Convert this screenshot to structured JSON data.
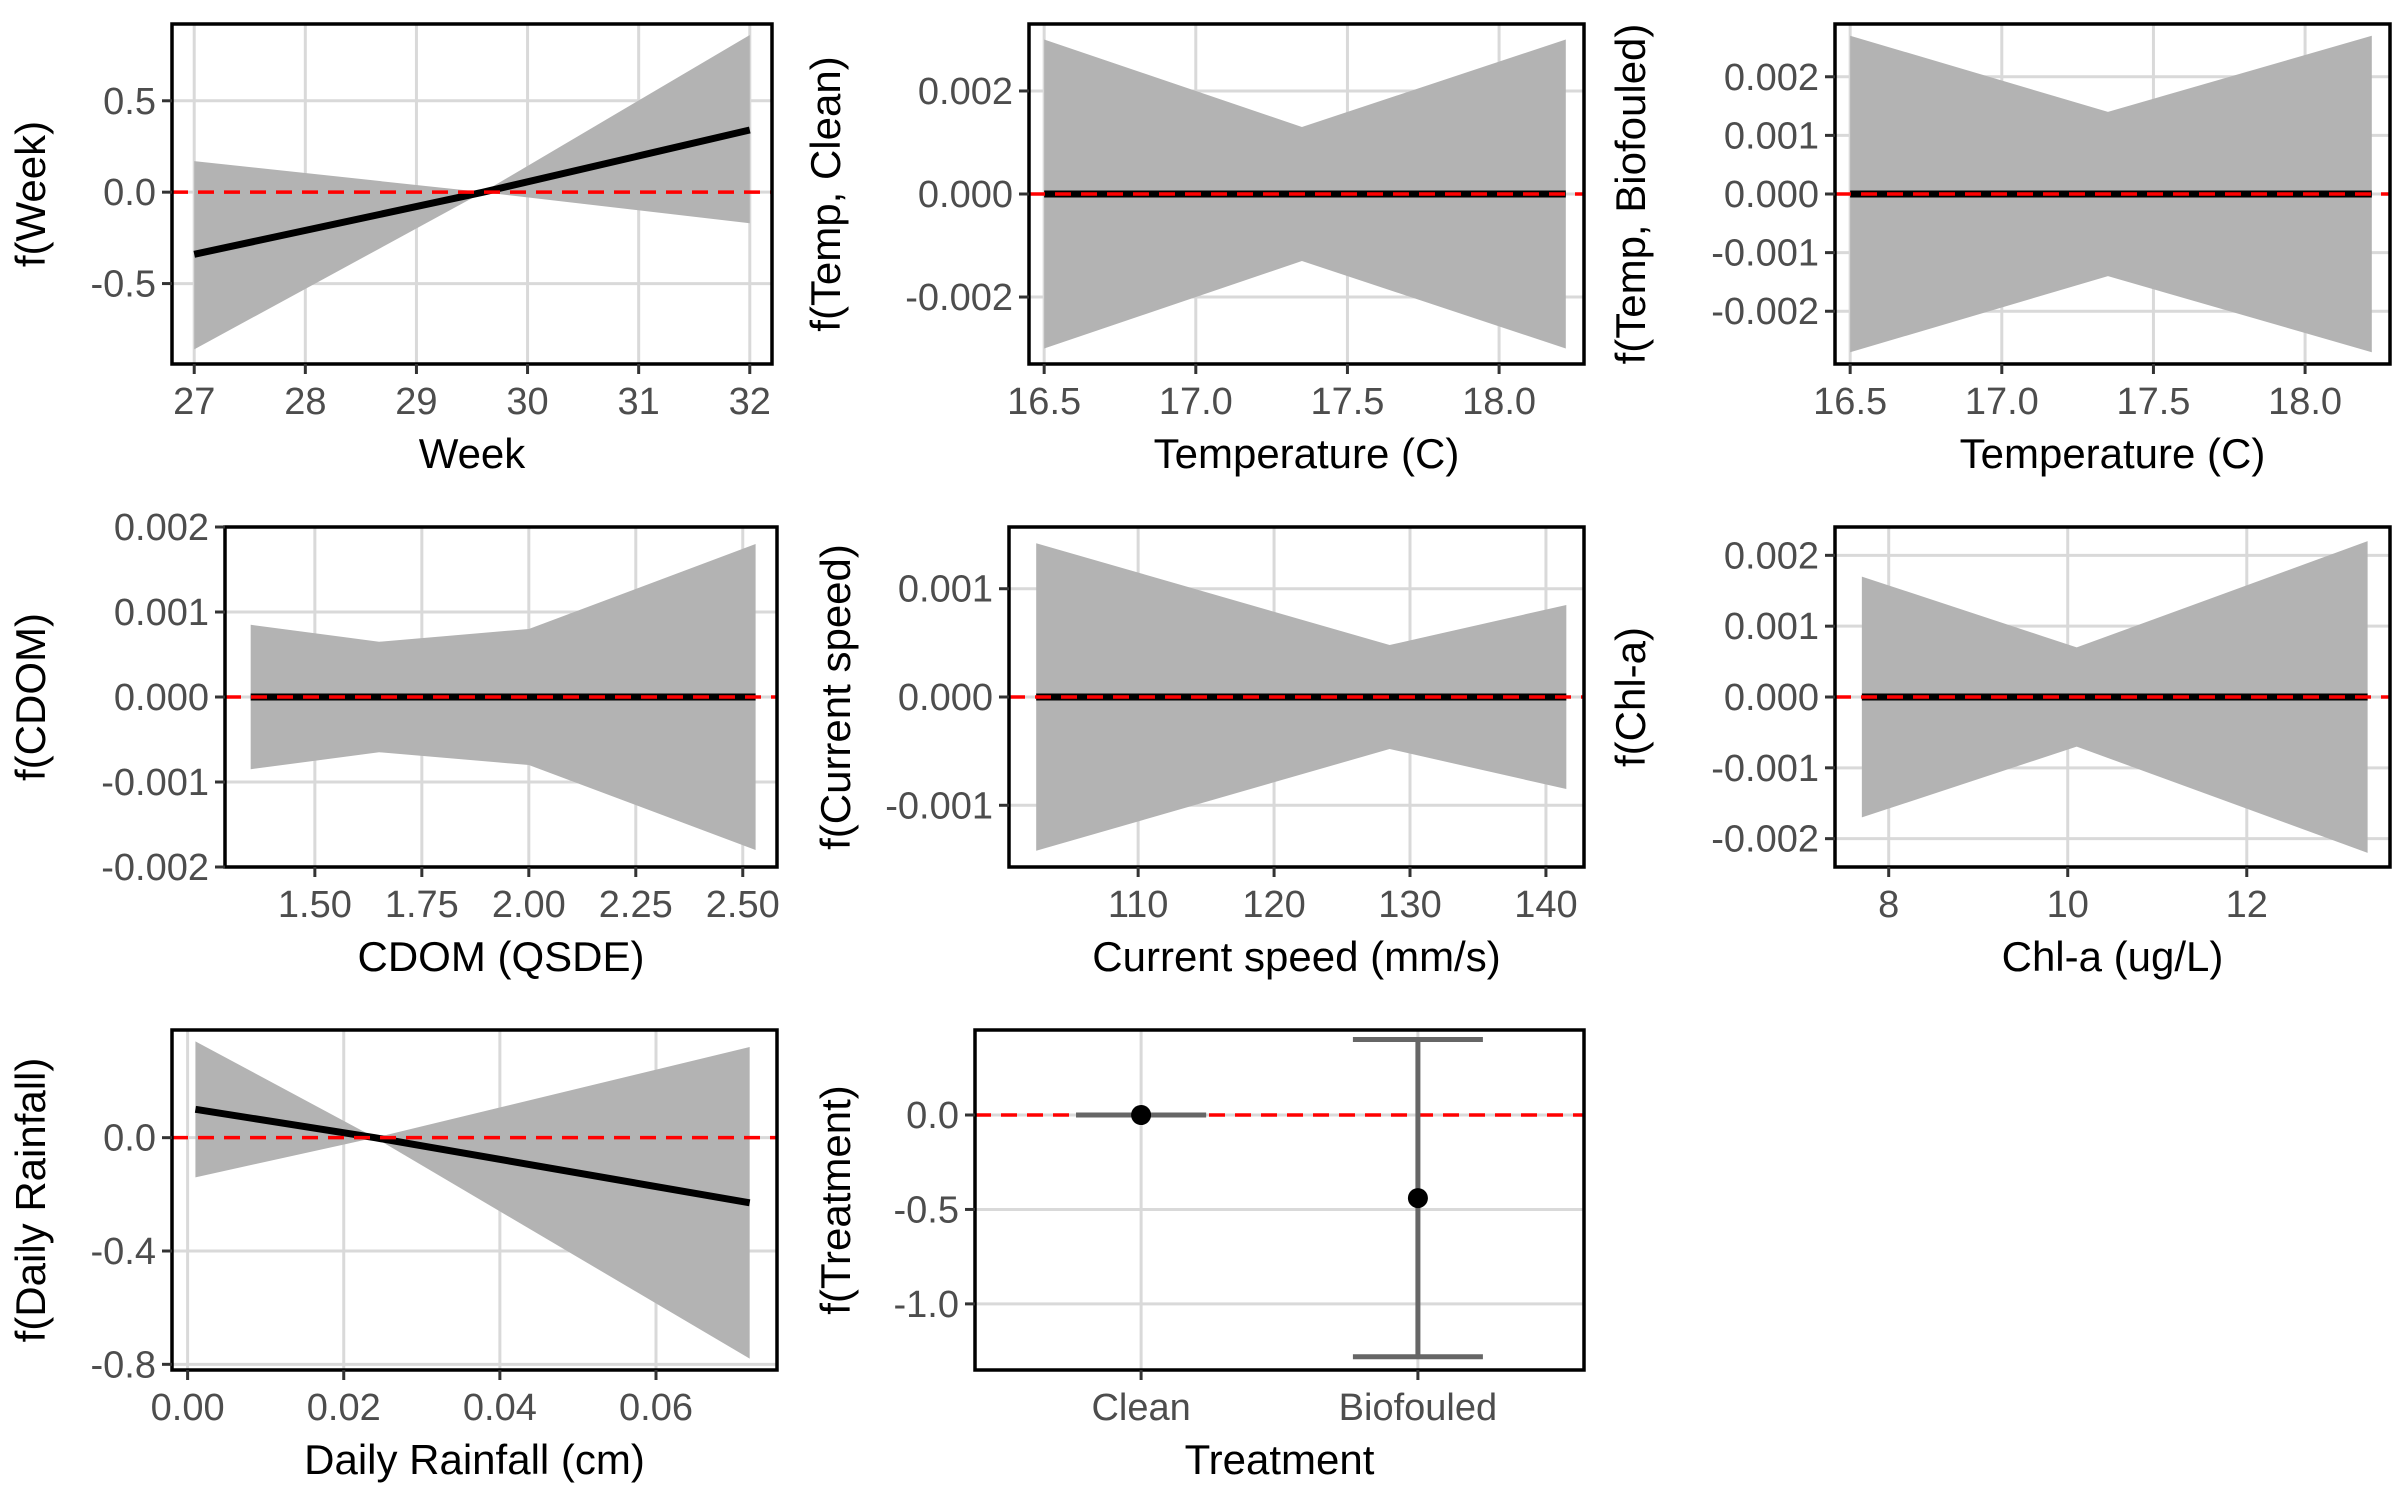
{
  "colors": {
    "line": "#000000",
    "band": "#b3b3b3",
    "zero_line": "#ff0000",
    "grid": "#d9d9d9",
    "errorbar": "#666666",
    "panel_border": "#000000"
  },
  "chart_data": [
    {
      "type": "line",
      "name": "week-panel",
      "xlabel": "Week",
      "ylabel": "f(Week)",
      "xlim": [
        26.8,
        32.2
      ],
      "ylim": [
        -0.94,
        0.92
      ],
      "xticks": [
        27,
        28,
        29,
        30,
        31,
        32
      ],
      "xtick_labels": [
        "27",
        "28",
        "29",
        "30",
        "31",
        "32"
      ],
      "yticks": [
        -0.5,
        0.0,
        0.5
      ],
      "ytick_labels": [
        "-0.5",
        "0.0",
        "0.5"
      ],
      "x": [
        27,
        29.6,
        32
      ],
      "y": [
        -0.34,
        0.0,
        0.34
      ],
      "lower": [
        -0.86,
        0.0,
        -0.17
      ],
      "upper": [
        0.17,
        0.0,
        0.86
      ],
      "zero_line": 0
    },
    {
      "type": "line",
      "name": "temp-clean-panel",
      "xlabel": "Temperature (C)",
      "ylabel": "f(Temp, Clean)",
      "xlim": [
        16.45,
        18.28
      ],
      "ylim": [
        -0.0033,
        0.0033
      ],
      "xticks": [
        16.5,
        17.0,
        17.5,
        18.0
      ],
      "xtick_labels": [
        "16.5",
        "17.0",
        "17.5",
        "18.0"
      ],
      "yticks": [
        -0.002,
        0.0,
        0.002
      ],
      "ytick_labels": [
        "-0.002",
        "0.000",
        "0.002"
      ],
      "x": [
        16.5,
        17.35,
        18.22
      ],
      "y": [
        0,
        0,
        0
      ],
      "lower": [
        -0.003,
        -0.0013,
        -0.003
      ],
      "upper": [
        0.003,
        0.0013,
        0.003
      ],
      "zero_line": 0
    },
    {
      "type": "line",
      "name": "temp-biofouled-panel",
      "xlabel": "Temperature (C)",
      "ylabel": "f(Temp, Biofouled)",
      "xlim": [
        16.45,
        18.28
      ],
      "ylim": [
        -0.0029,
        0.0029
      ],
      "xticks": [
        16.5,
        17.0,
        17.5,
        18.0
      ],
      "xtick_labels": [
        "16.5",
        "17.0",
        "17.5",
        "18.0"
      ],
      "yticks": [
        -0.002,
        -0.001,
        0.0,
        0.001,
        0.002
      ],
      "ytick_labels": [
        "-0.002",
        "-0.001",
        "0.000",
        "0.001",
        "0.002"
      ],
      "x": [
        16.5,
        17.35,
        18.22
      ],
      "y": [
        0,
        0,
        0
      ],
      "lower": [
        -0.0027,
        -0.0014,
        -0.0027
      ],
      "upper": [
        0.0027,
        0.0014,
        0.0027
      ],
      "zero_line": 0
    },
    {
      "type": "line",
      "name": "cdom-panel",
      "xlabel": "CDOM (QSDE)",
      "ylabel": "f(CDOM)",
      "xlim": [
        1.29,
        2.58
      ],
      "ylim": [
        -0.002,
        0.002
      ],
      "xticks": [
        1.5,
        1.75,
        2.0,
        2.25,
        2.5
      ],
      "xtick_labels": [
        "1.50",
        "1.75",
        "2.00",
        "2.25",
        "2.50"
      ],
      "yticks": [
        -0.002,
        -0.001,
        0.0,
        0.001,
        0.002
      ],
      "ytick_labels": [
        "-0.002",
        "-0.001",
        "0.000",
        "0.001",
        "0.002"
      ],
      "x": [
        1.35,
        1.65,
        2.0,
        2.53
      ],
      "y": [
        0,
        0,
        0,
        0
      ],
      "lower": [
        -0.00085,
        -0.00065,
        -0.0008,
        -0.0018
      ],
      "upper": [
        0.00085,
        0.00065,
        0.0008,
        0.0018
      ],
      "zero_line": 0
    },
    {
      "type": "line",
      "name": "current-speed-panel",
      "xlabel": "Current speed (mm/s)",
      "ylabel": "f(Current speed)",
      "xlim": [
        100.5,
        142.8
      ],
      "ylim": [
        -0.00157,
        0.00157
      ],
      "xticks": [
        110,
        120,
        130,
        140
      ],
      "xtick_labels": [
        "110",
        "120",
        "130",
        "140"
      ],
      "yticks": [
        -0.001,
        0.0,
        0.001
      ],
      "ytick_labels": [
        "-0.001",
        "0.000",
        "0.001"
      ],
      "x": [
        102.5,
        128.5,
        141.5
      ],
      "y": [
        0,
        0,
        0
      ],
      "lower": [
        -0.00142,
        -0.00048,
        -0.00085
      ],
      "upper": [
        0.00142,
        0.00048,
        0.00085
      ],
      "zero_line": 0
    },
    {
      "type": "line",
      "name": "chla-panel",
      "xlabel": "Chl-a (ug/L)",
      "ylabel": "f(Chl-a)",
      "xlim": [
        7.4,
        13.6
      ],
      "ylim": [
        -0.0024,
        0.0024
      ],
      "xticks": [
        8,
        10,
        12
      ],
      "xtick_labels": [
        "8",
        "10",
        "12"
      ],
      "yticks": [
        -0.002,
        -0.001,
        0.0,
        0.001,
        0.002
      ],
      "ytick_labels": [
        "-0.002",
        "-0.001",
        "0.000",
        "0.001",
        "0.002"
      ],
      "x": [
        7.7,
        10.1,
        13.35
      ],
      "y": [
        0,
        0,
        0
      ],
      "lower": [
        -0.0017,
        -0.0007,
        -0.0022
      ],
      "upper": [
        0.0017,
        0.0007,
        0.0022
      ],
      "zero_line": 0
    },
    {
      "type": "line",
      "name": "rainfall-panel",
      "xlabel": "Daily Rainfall (cm)",
      "ylabel": "f(Daily Rainfall)",
      "xlim": [
        -0.002,
        0.0755
      ],
      "ylim": [
        -0.82,
        0.38
      ],
      "xticks": [
        0.0,
        0.02,
        0.04,
        0.06
      ],
      "xtick_labels": [
        "0.00",
        "0.02",
        "0.04",
        "0.06"
      ],
      "yticks": [
        -0.8,
        -0.4,
        0.0
      ],
      "ytick_labels": [
        "-0.8",
        "-0.4",
        "0.0"
      ],
      "x": [
        0.001,
        0.024,
        0.072
      ],
      "y": [
        0.1,
        0.0,
        -0.23
      ],
      "lower": [
        -0.14,
        0.0,
        -0.78
      ],
      "upper": [
        0.34,
        0.0,
        0.32
      ],
      "zero_line": 0
    },
    {
      "type": "scatter",
      "name": "treatment-panel",
      "xlabel": "Treatment",
      "ylabel": "f(Treatment)",
      "categories": [
        "Clean",
        "Biofouled"
      ],
      "ylim": [
        -1.35,
        0.45
      ],
      "yticks": [
        -1.0,
        -0.5,
        0.0
      ],
      "ytick_labels": [
        "-1.0",
        "-0.5",
        "0.0"
      ],
      "values": [
        0.0,
        -0.44
      ],
      "lower": [
        0.0,
        -1.28
      ],
      "upper": [
        0.0,
        0.4
      ],
      "zero_line": 0
    }
  ]
}
